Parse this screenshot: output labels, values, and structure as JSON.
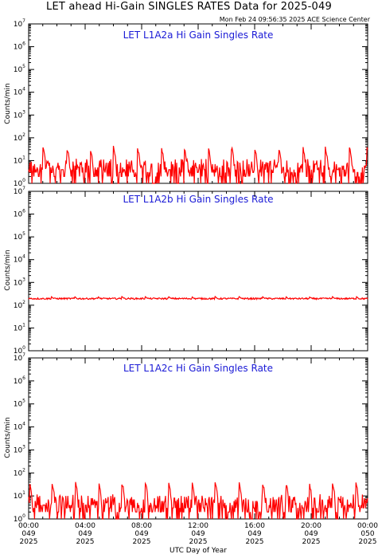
{
  "title": "LET ahead Hi-Gain SINGLES RATES Data for 2025-049",
  "timestamp": "Mon Feb 24 09:56:35 2025 ACE Science Center",
  "xlabel": "UTC Day of Year",
  "colors": {
    "trace": "#ff0000",
    "panel_title": "#1a1ad6",
    "axes": "#000000"
  },
  "chart_data": [
    {
      "type": "line",
      "title": "LET L1A2a Hi Gain Singles Rate",
      "ylabel": "Counts/min",
      "yscale": "log",
      "ylim": [
        1,
        10000000
      ],
      "yticks": [
        "10^0",
        "10^1",
        "10^2",
        "10^3",
        "10^4",
        "10^5",
        "10^6",
        "10^7"
      ],
      "xlim": [
        0,
        24
      ],
      "xunits": "hours UTC",
      "baseline": [
        1,
        8
      ],
      "spikes": {
        "times": [
          1.0,
          2.7,
          4.35,
          6.0,
          7.7,
          9.4,
          11.0,
          12.7,
          14.35,
          16.0,
          17.7,
          19.4,
          21.0,
          22.7,
          23.95
        ],
        "peak": 40
      }
    },
    {
      "type": "line",
      "title": "LET L1A2b Hi Gain Singles Rate",
      "ylabel": "Counts/min",
      "yscale": "log",
      "ylim": [
        1,
        10000000
      ],
      "yticks": [
        "10^0",
        "10^1",
        "10^2",
        "10^3",
        "10^4",
        "10^5",
        "10^6",
        "10^7"
      ],
      "xlim": [
        0,
        24
      ],
      "xunits": "hours UTC",
      "baseline": [
        180,
        210
      ],
      "spikes": {
        "times": [
          1.6,
          3.25,
          4.9,
          6.6,
          8.25,
          9.9,
          11.55,
          13.2,
          14.9,
          16.55,
          18.2,
          19.85,
          21.5,
          23.2
        ],
        "peak": 240
      }
    },
    {
      "type": "line",
      "title": "LET L1A2c Hi Gain Singles Rate",
      "ylabel": "Counts/min",
      "yscale": "log",
      "ylim": [
        1,
        10000000
      ],
      "yticks": [
        "10^0",
        "10^1",
        "10^2",
        "10^3",
        "10^4",
        "10^5",
        "10^6",
        "10^7"
      ],
      "xlim": [
        0,
        24
      ],
      "xunits": "hours UTC",
      "baseline": [
        1,
        8
      ],
      "spikes": {
        "times": [
          0.05,
          1.65,
          3.3,
          4.95,
          6.6,
          8.25,
          9.9,
          11.55,
          13.2,
          14.9,
          16.55,
          18.2,
          19.85,
          21.5,
          23.15
        ],
        "peak": 40
      }
    }
  ],
  "x_ticks": [
    {
      "time": "00:00",
      "doy": "049",
      "year": "2025"
    },
    {
      "time": "04:00",
      "doy": "049",
      "year": "2025"
    },
    {
      "time": "08:00",
      "doy": "049",
      "year": "2025"
    },
    {
      "time": "12:00",
      "doy": "049",
      "year": "2025"
    },
    {
      "time": "16:00",
      "doy": "049",
      "year": "2025"
    },
    {
      "time": "20:00",
      "doy": "049",
      "year": "2025"
    },
    {
      "time": "00:00",
      "doy": "050",
      "year": "2025"
    }
  ]
}
